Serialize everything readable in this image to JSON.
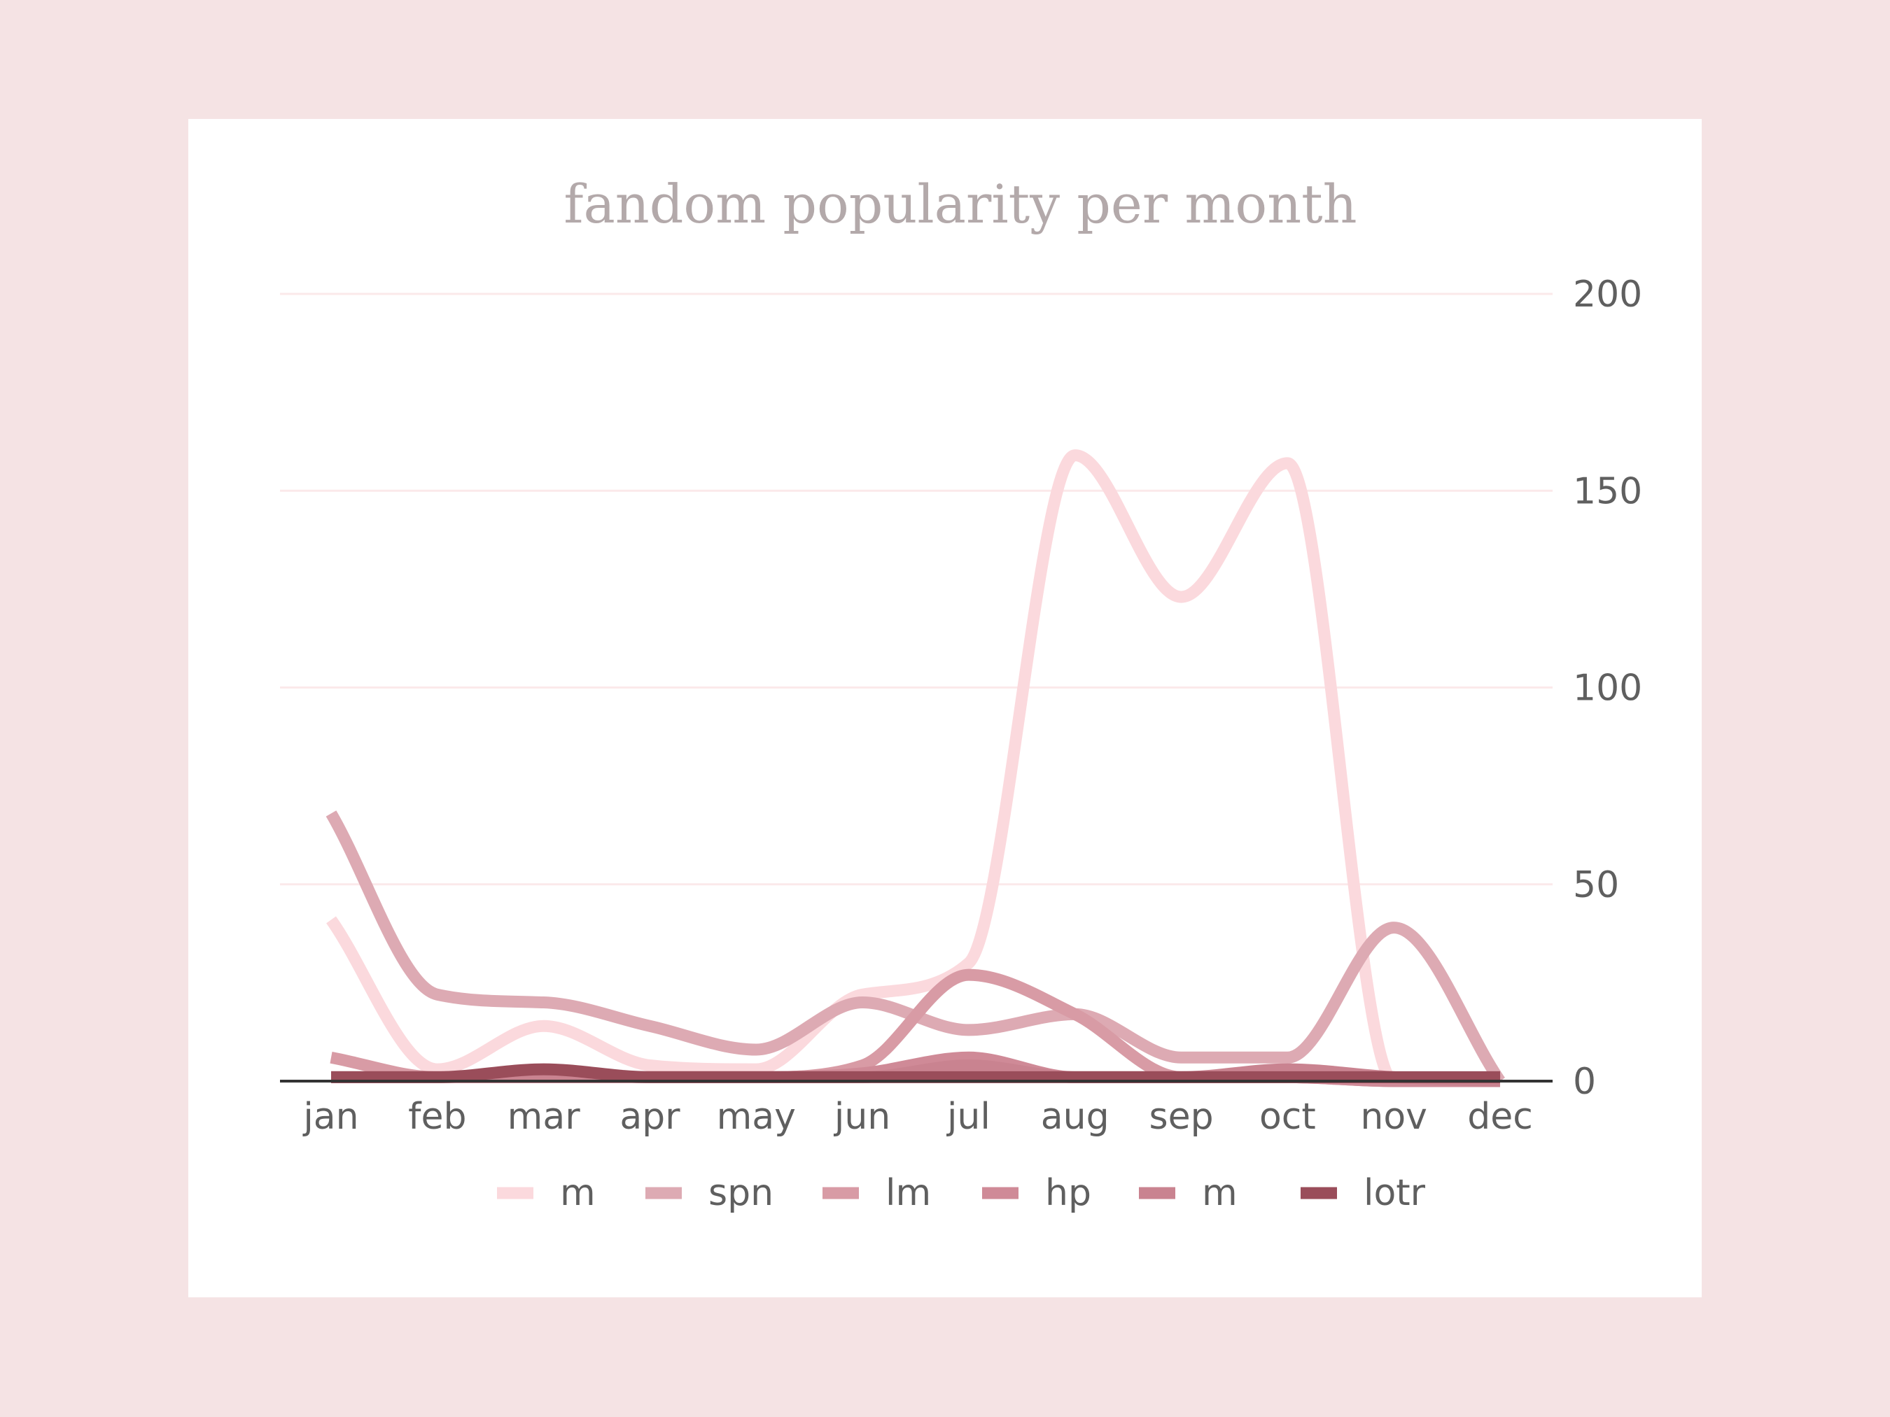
{
  "chart_data": {
    "type": "line",
    "title": "fandom popularity per month",
    "xlabel": "",
    "ylabel": "",
    "categories": [
      "jan",
      "feb",
      "mar",
      "apr",
      "may",
      "jun",
      "jul",
      "aug",
      "sep",
      "oct",
      "nov",
      "dec"
    ],
    "ylim": [
      0,
      200
    ],
    "yticks": [
      0,
      50,
      100,
      150,
      200
    ],
    "y_axis_side": "right",
    "grid": true,
    "legend_position": "bottom",
    "series": [
      {
        "name": "m",
        "color": "#fbd9dd",
        "values": [
          41,
          3,
          14,
          4,
          3,
          22,
          30,
          159,
          123,
          157,
          0,
          0
        ]
      },
      {
        "name": "spn",
        "color": "#ddaab3",
        "values": [
          68,
          22,
          20,
          14,
          8,
          20,
          13,
          17,
          6,
          6,
          39,
          0
        ]
      },
      {
        "name": "lm",
        "color": "#d89ba5",
        "values": [
          6,
          1,
          1,
          1,
          1,
          4,
          27,
          17,
          1,
          1,
          0,
          0
        ]
      },
      {
        "name": "hp",
        "color": "#cf8a97",
        "values": [
          1,
          1,
          2,
          1,
          1,
          2,
          6,
          1,
          1,
          1,
          0,
          0
        ]
      },
      {
        "name": "m",
        "color": "#c98390",
        "values": [
          1,
          1,
          1,
          1,
          1,
          1,
          4,
          1,
          1,
          3,
          1,
          0
        ]
      },
      {
        "name": "lotr",
        "color": "#9a4d5a",
        "values": [
          1,
          1,
          3,
          1,
          1,
          1,
          1,
          1,
          1,
          1,
          1,
          1
        ]
      }
    ]
  }
}
